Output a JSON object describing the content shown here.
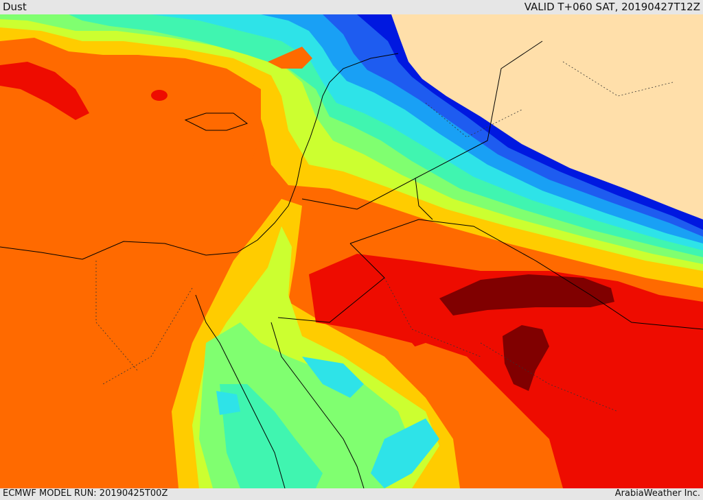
{
  "header": {
    "title": "Dust",
    "valid_time": "VALID T+060 SAT, 20190427T12Z"
  },
  "footer": {
    "model_run": "ECMWF MODEL RUN: 20190425T00Z",
    "credit": "ArabiaWeather Inc."
  },
  "map": {
    "field": "Dust",
    "colors": {
      "land_no_data": "#ffdfaa",
      "level_1": "#0018e0",
      "level_2": "#1e5cf0",
      "level_3": "#19a0f5",
      "level_4": "#2ee3e8",
      "level_5": "#40f5b0",
      "level_6": "#80ff70",
      "level_7": "#ccff30",
      "level_8": "#ffcc00",
      "level_9": "#ff6a00",
      "level_10": "#ee0c00",
      "level_11": "#800000"
    }
  }
}
